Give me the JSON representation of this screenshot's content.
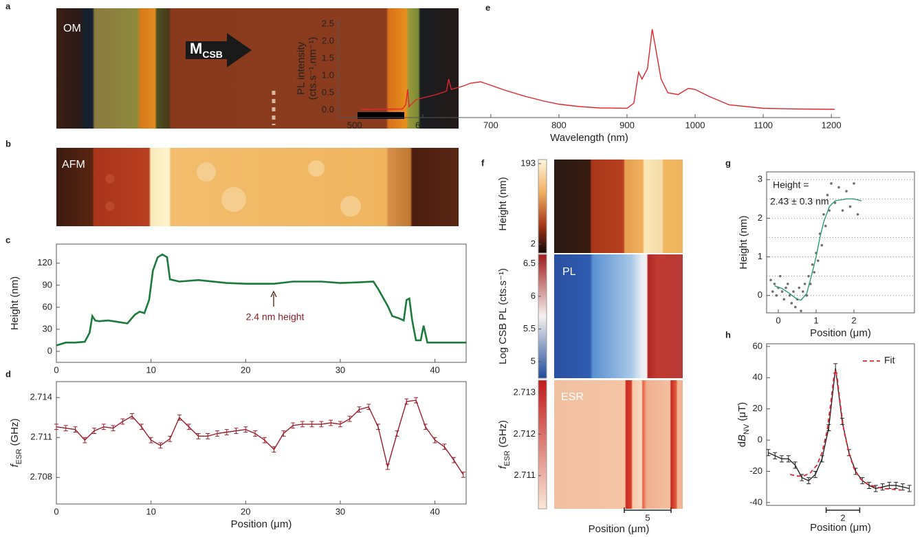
{
  "chart_data": [
    {
      "type": "line",
      "panel_label": "c",
      "ylabel": [
        [
          {
            "text": "Height (nm)"
          }
        ]
      ],
      "annotations": [
        "2.4 nm height"
      ],
      "x": [
        0,
        1,
        2,
        3,
        3.5,
        3.8,
        4.1,
        4.5,
        5.5,
        6.5,
        7.5,
        8.3,
        8.8,
        9.3,
        9.8,
        10.2,
        10.7,
        11.2,
        11.7,
        12,
        13,
        15,
        18,
        20,
        23,
        25,
        28,
        30,
        32,
        33.5,
        34,
        35,
        35.5,
        36.2,
        36.7,
        37,
        37.3,
        37.6,
        38,
        38.5,
        38.8,
        39.2,
        40,
        42,
        43.3
      ],
      "series": [
        {
          "color": "#1a7a3a",
          "values": [
            8,
            12,
            12,
            13,
            25,
            48,
            42,
            41,
            42,
            40,
            38,
            50,
            54,
            52,
            70,
            110,
            128,
            132,
            128,
            98,
            95,
            97,
            93,
            92,
            92,
            95,
            95,
            93,
            94,
            95,
            85,
            62,
            48,
            45,
            42,
            70,
            72,
            42,
            15,
            15,
            35,
            12,
            12,
            12,
            12
          ]
        }
      ],
      "xlim": [
        0,
        43.3
      ],
      "ylim": [
        -15,
        146
      ],
      "xticks": [
        0,
        10,
        20,
        30,
        40
      ],
      "yticks": [
        0,
        30,
        60,
        90,
        120
      ]
    },
    {
      "type": "line",
      "panel_label": "d",
      "ylabel": [
        [
          {
            "text": "f",
            "style": "italic"
          },
          {
            "text": "ESR",
            "style": "sub"
          },
          {
            "text": " (GHz)"
          }
        ]
      ],
      "xlabel": "Position (μm)",
      "x": [
        0,
        1,
        2,
        3,
        4,
        5,
        6,
        7,
        8,
        9,
        10,
        11,
        12,
        13,
        14,
        15,
        16,
        17,
        18,
        19,
        20,
        21,
        22,
        23,
        24,
        25,
        26,
        27,
        28,
        29,
        30,
        31,
        32,
        33,
        34,
        35,
        36,
        37,
        38,
        39,
        40,
        41,
        42,
        43
      ],
      "series": [
        {
          "color": "#9b1c2a",
          "values": [
            2.7118,
            2.7117,
            2.7116,
            2.7108,
            2.7115,
            2.7118,
            2.7117,
            2.7122,
            2.7126,
            2.7118,
            2.7108,
            2.7104,
            2.7109,
            2.7125,
            2.7118,
            2.7111,
            2.7111,
            2.7113,
            2.7114,
            2.7115,
            2.7116,
            2.7113,
            2.7108,
            2.7101,
            2.7113,
            2.7119,
            2.712,
            2.712,
            2.712,
            2.7121,
            2.712,
            2.7124,
            2.7131,
            2.7133,
            2.7118,
            2.7088,
            2.7113,
            2.7137,
            2.7138,
            2.7118,
            2.7108,
            2.7103,
            2.7093,
            2.7082
          ],
          "errors": [
            0.0002,
            0.0002,
            0.0002,
            0.0002,
            0.0002,
            0.0002,
            0.0002,
            0.0002,
            0.0002,
            0.0002,
            0.0002,
            0.0002,
            0.0002,
            0.0002,
            0.0002,
            0.0002,
            0.0002,
            0.0002,
            0.0002,
            0.0002,
            0.0002,
            0.0002,
            0.0002,
            0.0002,
            0.0002,
            0.0002,
            0.0002,
            0.0002,
            0.0002,
            0.0002,
            0.0002,
            0.0002,
            0.0002,
            0.0002,
            0.0002,
            0.0002,
            0.0002,
            0.0002,
            0.0002,
            0.0002,
            0.0002,
            0.0002,
            0.0002,
            0.0002
          ]
        }
      ],
      "xlim": [
        0,
        43.3
      ],
      "ylim": [
        2.706,
        2.7152
      ],
      "xticks": [
        0,
        10,
        20,
        30,
        40
      ],
      "yticks": [
        2.708,
        2.711,
        2.714
      ]
    },
    {
      "type": "line",
      "panel_label": "e",
      "ylabel": [
        [
          {
            "text": "PL intensity"
          }
        ],
        [
          {
            "text": "(cts.s⁻¹.nm⁻¹)"
          }
        ]
      ],
      "xlabel": "Wavelength (nm)",
      "x": [
        510,
        570,
        575,
        578,
        580,
        590,
        600,
        620,
        635,
        638,
        642,
        660,
        670,
        685,
        700,
        720,
        750,
        780,
        800,
        830,
        860,
        900,
        910,
        917,
        922,
        930,
        937,
        942,
        950,
        960,
        975,
        990,
        1000,
        1020,
        1050,
        1100,
        1150,
        1205
      ],
      "series": [
        {
          "color": "#e0262e",
          "values": [
            0.02,
            0.03,
            0.15,
            0.6,
            0.1,
            0.3,
            0.35,
            0.45,
            0.55,
            0.9,
            0.6,
            0.7,
            0.78,
            0.82,
            0.72,
            0.58,
            0.4,
            0.25,
            0.17,
            0.1,
            0.06,
            0.05,
            0.2,
            1.1,
            0.9,
            1.2,
            2.35,
            1.8,
            0.9,
            0.5,
            0.45,
            0.63,
            0.6,
            0.4,
            0.15,
            0.05,
            0.03,
            0.02
          ]
        }
      ],
      "xlim": [
        476,
        1213
      ],
      "ylim": [
        -0.22,
        2.64
      ],
      "xticks": [
        500,
        600,
        700,
        800,
        900,
        1000,
        1100,
        1200
      ],
      "yticks": [
        {
          "value": 0,
          "label": "0.0"
        },
        0.5,
        {
          "value": 1,
          "label": "1.0"
        },
        1.5,
        {
          "value": 2,
          "label": "2.0"
        },
        2.5
      ]
    },
    {
      "type": "scatter",
      "panel_label": "g",
      "ylabel": [
        [
          {
            "text": "Height (nm)"
          }
        ]
      ],
      "xlabel": "Position (μm)",
      "annotations": [
        "Height =",
        "2.43 ± 0.3 nm"
      ],
      "series": [
        {
          "type": "points",
          "color": "#707070",
          "x": [
            -0.2,
            -0.15,
            -0.1,
            -0.05,
            0,
            0.05,
            0.1,
            0.15,
            0.2,
            0.25,
            0.3,
            0.35,
            0.4,
            0.45,
            0.5,
            0.55,
            0.6,
            0.65,
            0.7,
            0.75,
            0.8,
            0.85,
            0.9,
            0.95,
            1.0,
            1.05,
            1.1,
            1.15,
            1.2,
            1.25,
            1.3,
            1.35,
            1.4,
            1.5,
            1.6,
            1.7,
            1.8,
            1.9,
            2.0,
            2.1
          ],
          "values": [
            0.4,
            0.1,
            0.3,
            0.0,
            0.2,
            0.5,
            0.1,
            -0.1,
            0.2,
            0.3,
            0.0,
            -0.2,
            0.1,
            -0.3,
            -0.1,
            0.2,
            -0.4,
            0.1,
            0.3,
            0.0,
            0.5,
            0.3,
            0.8,
            0.6,
            1.1,
            0.9,
            1.6,
            1.3,
            2.1,
            1.8,
            2.6,
            2.2,
            2.9,
            2.4,
            2.8,
            2.2,
            2.7,
            2.3,
            2.9,
            2.1
          ]
        },
        {
          "type": "line",
          "color": "#2a9d6a",
          "x": [
            -0.1,
            0.1,
            0.3,
            0.5,
            0.6,
            0.75,
            0.9,
            1.0,
            1.1,
            1.2,
            1.35,
            1.5,
            1.8,
            2.0,
            2.2
          ],
          "values": [
            0.25,
            0.18,
            0.05,
            -0.1,
            -0.12,
            0.05,
            0.6,
            1.0,
            1.5,
            1.9,
            2.3,
            2.45,
            2.5,
            2.5,
            2.45
          ]
        }
      ],
      "xlim": [
        -0.31,
        3.6
      ],
      "ylim": [
        -0.45,
        3.2
      ],
      "xticks": [
        0,
        1,
        2
      ],
      "yticks": [
        0,
        1,
        2,
        3
      ],
      "grid_y": [
        0,
        0.5,
        1,
        1.5,
        2,
        2.5,
        3
      ]
    },
    {
      "type": "scatter",
      "panel_label": "h",
      "ylabel": [
        [
          {
            "text": "d"
          },
          {
            "text": "B",
            "style": "italic"
          },
          {
            "text": "NV",
            "style": "sub"
          },
          {
            "text": " (μT)"
          }
        ]
      ],
      "xlabel": "Position (μm)",
      "scale_bar": 2,
      "series": [
        {
          "type": "line",
          "color": "#222222",
          "x": [
            0.1,
            0.5,
            0.9,
            1.3,
            1.7,
            2.1,
            2.5,
            2.9,
            3.3,
            3.7,
            4.1,
            4.5,
            4.9,
            5.3,
            5.7,
            6.1,
            6.5,
            6.9,
            7.3,
            7.7,
            8.1,
            8.5
          ],
          "values": [
            -8,
            -10,
            -12,
            -12,
            -16,
            -24,
            -26,
            -22,
            -12,
            8,
            46,
            12,
            -8,
            -20,
            -26,
            -29,
            -31,
            -30,
            -29,
            -29,
            -30,
            -31
          ],
          "errors": [
            2,
            2,
            2,
            2,
            2,
            2,
            2,
            2,
            2,
            2,
            3,
            2,
            2,
            2,
            2,
            2,
            2,
            2,
            2,
            2,
            2,
            2
          ]
        },
        {
          "type": "dashed",
          "name": "Fit",
          "color": "#e0262e",
          "x": [
            1.4,
            1.8,
            2.2,
            2.6,
            3.0,
            3.3,
            3.6,
            3.8,
            4.0,
            4.1,
            4.2,
            4.4,
            4.6,
            4.9,
            5.2,
            5.6,
            6.0,
            6.5,
            7.0,
            7.5,
            8.0
          ],
          "values": [
            -22,
            -23,
            -23,
            -21,
            -16,
            -8,
            6,
            22,
            40,
            45,
            40,
            22,
            6,
            -8,
            -18,
            -25,
            -28,
            -30,
            -31,
            -31.5,
            -32
          ]
        }
      ],
      "xlim": [
        0,
        8.8
      ],
      "ylim": [
        -41.8,
        61.7
      ],
      "yticks": [
        60,
        40,
        20,
        0,
        -20,
        -40
      ]
    }
  ],
  "images": [
    {
      "panel_label": "a",
      "label": "OM",
      "arrow_label": "M",
      "arrow_label_sub": "CSB"
    },
    {
      "panel_label": "b",
      "label": "AFM"
    },
    {
      "panel_label": "f",
      "xlabel": "Position (μm)",
      "scale_bar": 5,
      "maps": [
        {
          "colorbar_label": [
            [
              {
                "text": "Height (nm)"
              }
            ]
          ],
          "colorbar_lim": [
            2,
            193
          ],
          "colorbar_ticks": [
            193,
            2
          ]
        },
        {
          "map_label": "PL",
          "colorbar_label": [
            [
              {
                "text": "Log CSB PL (cts.s⁻¹)"
              }
            ]
          ],
          "colorbar_lim": [
            4.75,
            6.64
          ],
          "colorbar_ticks": [
            6.5,
            6,
            5.5,
            5
          ]
        },
        {
          "map_label": "ESR",
          "colorbar_label": [
            [
              {
                "text": "f",
                "style": "italic"
              },
              {
                "text": "ESR",
                "style": "sub"
              },
              {
                "text": " (GHz)"
              }
            ]
          ],
          "colorbar_lim": [
            2.7102,
            2.7133
          ],
          "colorbar_ticks": [
            2.713,
            2.712,
            2.711
          ]
        }
      ]
    }
  ]
}
